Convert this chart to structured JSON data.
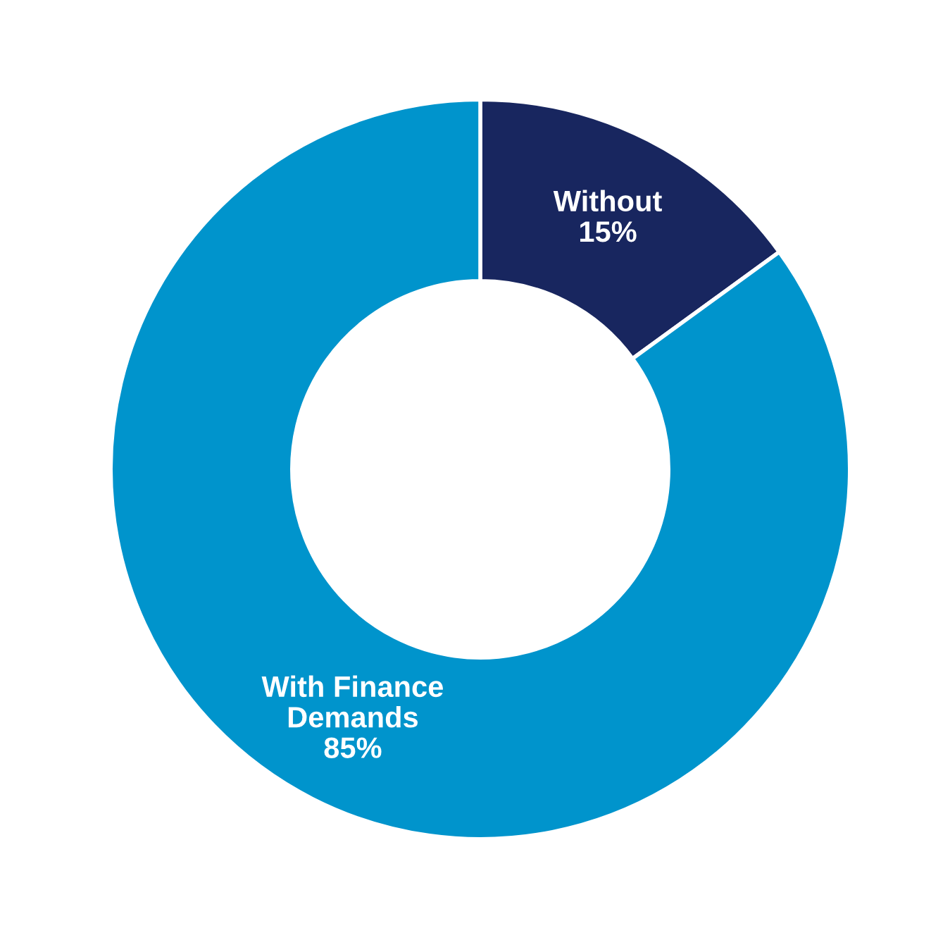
{
  "chart_data": {
    "type": "donut",
    "categories": [
      "Without",
      "With Finance Demands"
    ],
    "values": [
      15,
      85
    ],
    "colors": [
      "#18265f",
      "#0094cc"
    ],
    "value_labels": [
      "15%",
      "85%"
    ]
  }
}
